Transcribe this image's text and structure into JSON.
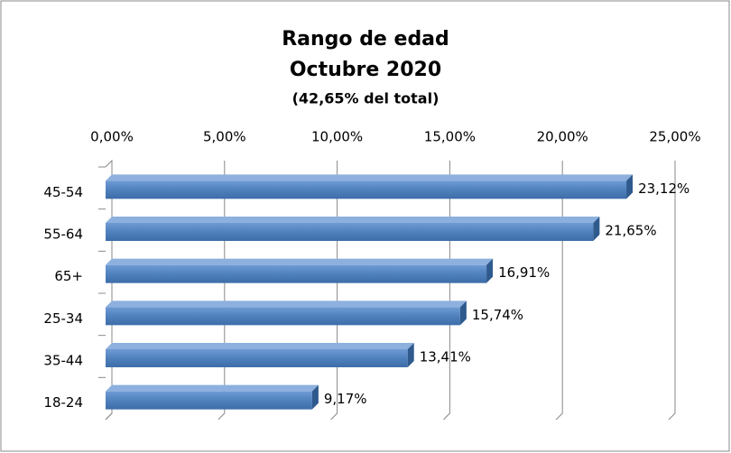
{
  "chart_data": {
    "type": "bar",
    "orientation": "horizontal",
    "title": [
      "Rango de edad",
      "Octubre 2020",
      "(42,65% del total)"
    ],
    "categories": [
      "45-54",
      "55-64",
      "65+",
      "25-34",
      "35-44",
      "18-24"
    ],
    "values": [
      23.12,
      21.65,
      16.91,
      15.74,
      13.41,
      9.17
    ],
    "value_labels": [
      "23,12%",
      "21,65%",
      "16,91%",
      "15,74%",
      "13,41%",
      "9,17%"
    ],
    "color": "#4f81bd",
    "xlim": [
      0,
      25
    ],
    "xticks": [
      {
        "value": 0,
        "label": "0,00%"
      },
      {
        "value": 5,
        "label": "5,00%"
      },
      {
        "value": 10,
        "label": "10,00%"
      },
      {
        "value": 15,
        "label": "15,00%"
      },
      {
        "value": 20,
        "label": "20,00%"
      },
      {
        "value": 25,
        "label": "25,00%"
      }
    ],
    "grid": true
  }
}
